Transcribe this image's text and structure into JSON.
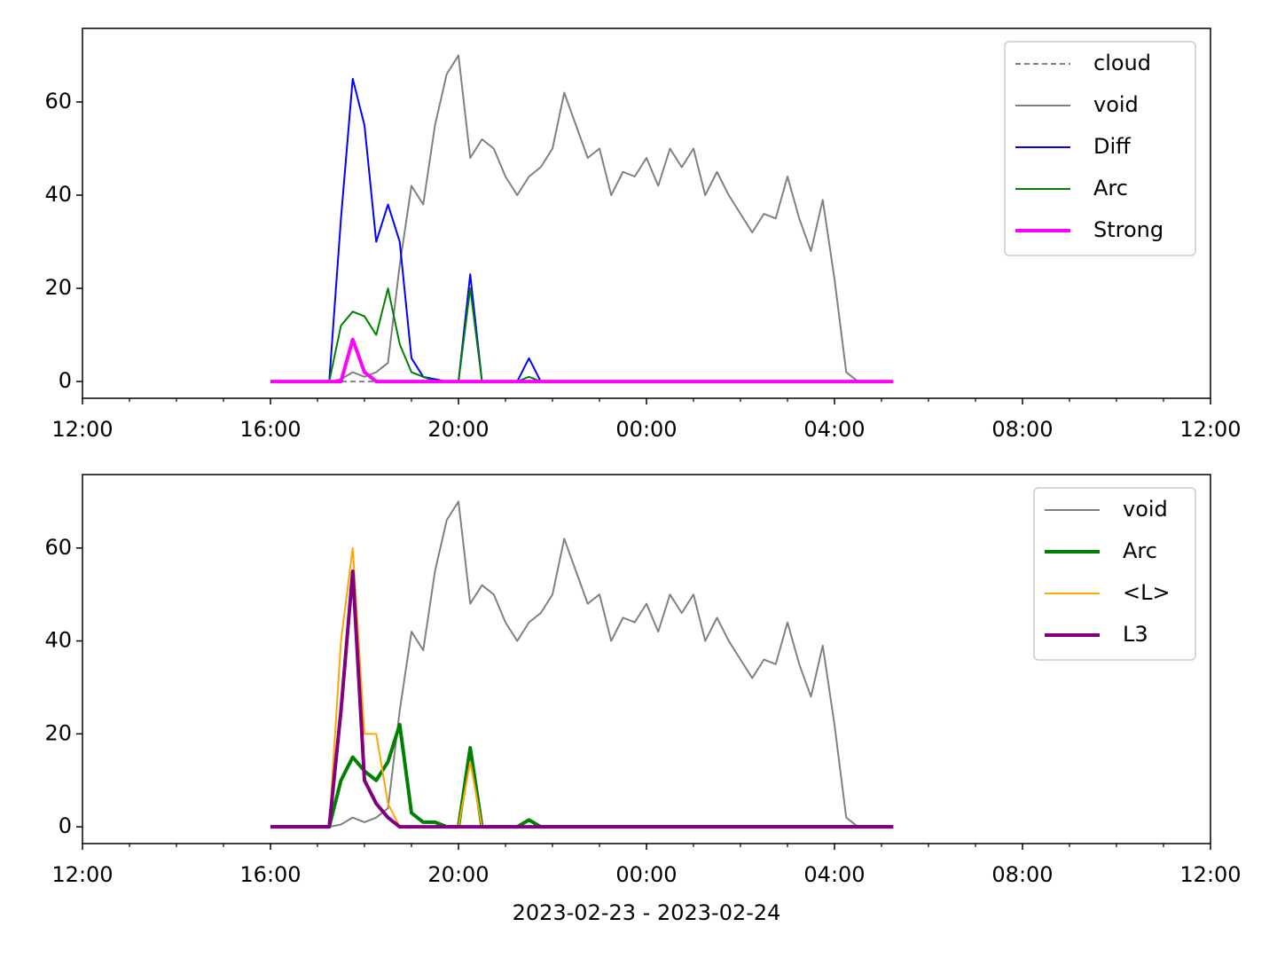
{
  "chart_data": [
    {
      "type": "line",
      "legend": "upper right",
      "xlim": [
        "2023-02-23T12:00",
        "2023-02-24T12:00"
      ],
      "xticks": [
        {
          "value": "2023-02-23T12:00",
          "label": "12:00"
        },
        {
          "value": "2023-02-23T16:00",
          "label": "16:00"
        },
        {
          "value": "2023-02-23T20:00",
          "label": "20:00"
        },
        {
          "value": "2023-02-24T00:00",
          "label": "00:00"
        },
        {
          "value": "2023-02-24T04:00",
          "label": "04:00"
        },
        {
          "value": "2023-02-24T08:00",
          "label": "08:00"
        },
        {
          "value": "2023-02-24T12:00",
          "label": "12:00"
        }
      ],
      "xminorticks": [
        "2023-02-23T13:00",
        "2023-02-23T14:00",
        "2023-02-23T15:00",
        "2023-02-23T17:00",
        "2023-02-23T18:00",
        "2023-02-23T19:00",
        "2023-02-23T21:00",
        "2023-02-23T22:00",
        "2023-02-23T23:00",
        "2023-02-24T01:00",
        "2023-02-24T02:00",
        "2023-02-24T03:00",
        "2023-02-24T05:00",
        "2023-02-24T06:00",
        "2023-02-24T07:00",
        "2023-02-24T09:00",
        "2023-02-24T10:00",
        "2023-02-24T11:00"
      ],
      "ylim": [
        -3.6,
        75.8
      ],
      "yticks": [
        0,
        20,
        40,
        60
      ],
      "x": [
        "2023-02-23T16:00",
        "2023-02-23T16:15",
        "2023-02-23T16:30",
        "2023-02-23T16:45",
        "2023-02-23T17:00",
        "2023-02-23T17:15",
        "2023-02-23T17:30",
        "2023-02-23T17:45",
        "2023-02-23T18:00",
        "2023-02-23T18:15",
        "2023-02-23T18:30",
        "2023-02-23T18:45",
        "2023-02-23T19:00",
        "2023-02-23T19:15",
        "2023-02-23T19:30",
        "2023-02-23T19:45",
        "2023-02-23T20:00",
        "2023-02-23T20:15",
        "2023-02-23T20:30",
        "2023-02-23T20:45",
        "2023-02-23T21:00",
        "2023-02-23T21:15",
        "2023-02-23T21:30",
        "2023-02-23T21:45",
        "2023-02-23T22:00",
        "2023-02-23T22:15",
        "2023-02-23T22:30",
        "2023-02-23T22:45",
        "2023-02-23T23:00",
        "2023-02-23T23:15",
        "2023-02-23T23:30",
        "2023-02-23T23:45",
        "2023-02-24T00:00",
        "2023-02-24T00:15",
        "2023-02-24T00:30",
        "2023-02-24T00:45",
        "2023-02-24T01:00",
        "2023-02-24T01:15",
        "2023-02-24T01:30",
        "2023-02-24T01:45",
        "2023-02-24T02:00",
        "2023-02-24T02:15",
        "2023-02-24T02:30",
        "2023-02-24T02:45",
        "2023-02-24T03:00",
        "2023-02-24T03:15",
        "2023-02-24T03:30",
        "2023-02-24T03:45",
        "2023-02-24T04:00",
        "2023-02-24T04:15",
        "2023-02-24T04:30",
        "2023-02-24T04:45",
        "2023-02-24T05:00",
        "2023-02-24T05:15"
      ],
      "series": [
        {
          "name": "cloud",
          "color": "#808080",
          "width": 1.5,
          "dash": true,
          "values": [
            0,
            0,
            0,
            0,
            0,
            0,
            0,
            0,
            0,
            0,
            0,
            0,
            0,
            0,
            0,
            0,
            0,
            0,
            0,
            0,
            0,
            0,
            0,
            0,
            0,
            0,
            0,
            0,
            0,
            0,
            0,
            0,
            0,
            0,
            0,
            0,
            0,
            0,
            0,
            0,
            0,
            0,
            0,
            0,
            0,
            0,
            0,
            0,
            0,
            0,
            0,
            0,
            0,
            0
          ]
        },
        {
          "name": "void",
          "color": "#808080",
          "width": 1.5,
          "values": [
            0,
            0,
            0,
            0,
            0,
            0,
            0.5,
            2,
            1,
            2,
            4,
            25,
            42,
            38,
            55,
            66,
            70,
            48,
            52,
            50,
            44,
            40,
            44,
            46,
            50,
            62,
            55,
            48,
            50,
            40,
            45,
            44,
            48,
            42,
            50,
            46,
            50,
            40,
            45,
            40,
            36,
            32,
            36,
            35,
            44,
            35,
            28,
            39,
            22,
            2,
            0,
            0,
            0,
            0
          ]
        },
        {
          "name": "Diff",
          "color": "#0000ff",
          "width": 1.5,
          "values": [
            0,
            0,
            0,
            0,
            0,
            0,
            35,
            65,
            55,
            30,
            38,
            30,
            5,
            1,
            0.5,
            0,
            0,
            23,
            0,
            0,
            0,
            0,
            5,
            0,
            0,
            0,
            0,
            0,
            0,
            0,
            0,
            0,
            0,
            0,
            0,
            0,
            0,
            0,
            0,
            0,
            0,
            0,
            0,
            0,
            0,
            0,
            0,
            0,
            0,
            0,
            0,
            0,
            0,
            0
          ]
        },
        {
          "name": "Arc",
          "color": "#008000",
          "width": 1.5,
          "values": [
            0,
            0,
            0,
            0,
            0,
            0,
            12,
            15,
            14,
            10,
            20,
            8,
            2,
            1,
            0,
            0,
            0,
            20,
            0,
            0,
            0,
            0,
            1,
            0,
            0,
            0,
            0,
            0,
            0,
            0,
            0,
            0,
            0,
            0,
            0,
            0,
            0,
            0,
            0,
            0,
            0,
            0,
            0,
            0,
            0,
            0,
            0,
            0,
            0,
            0,
            0,
            0,
            0,
            0
          ]
        },
        {
          "name": "Strong",
          "color": "#ff00ff",
          "width": 3,
          "values": [
            0,
            0,
            0,
            0,
            0,
            0,
            0,
            9,
            2,
            0,
            0,
            0,
            0,
            0,
            0,
            0,
            0,
            0,
            0,
            0,
            0,
            0,
            0,
            0,
            0,
            0,
            0,
            0,
            0,
            0,
            0,
            0,
            0,
            0,
            0,
            0,
            0,
            0,
            0,
            0,
            0,
            0,
            0,
            0,
            0,
            0,
            0,
            0,
            0,
            0,
            0,
            0,
            0,
            0
          ]
        }
      ]
    },
    {
      "type": "line",
      "legend": "upper right",
      "xlabel": "2023-02-23 - 2023-02-24",
      "xlim": [
        "2023-02-23T12:00",
        "2023-02-24T12:00"
      ],
      "xticks": [
        {
          "value": "2023-02-23T12:00",
          "label": "12:00"
        },
        {
          "value": "2023-02-23T16:00",
          "label": "16:00"
        },
        {
          "value": "2023-02-23T20:00",
          "label": "20:00"
        },
        {
          "value": "2023-02-24T00:00",
          "label": "00:00"
        },
        {
          "value": "2023-02-24T04:00",
          "label": "04:00"
        },
        {
          "value": "2023-02-24T08:00",
          "label": "08:00"
        },
        {
          "value": "2023-02-24T12:00",
          "label": "12:00"
        }
      ],
      "xminorticks": [
        "2023-02-23T13:00",
        "2023-02-23T14:00",
        "2023-02-23T15:00",
        "2023-02-23T17:00",
        "2023-02-23T18:00",
        "2023-02-23T19:00",
        "2023-02-23T21:00",
        "2023-02-23T22:00",
        "2023-02-23T23:00",
        "2023-02-24T01:00",
        "2023-02-24T02:00",
        "2023-02-24T03:00",
        "2023-02-24T05:00",
        "2023-02-24T06:00",
        "2023-02-24T07:00",
        "2023-02-24T09:00",
        "2023-02-24T10:00",
        "2023-02-24T11:00"
      ],
      "ylim": [
        -3.6,
        75.8
      ],
      "yticks": [
        0,
        20,
        40,
        60
      ],
      "x": [
        "2023-02-23T16:00",
        "2023-02-23T16:15",
        "2023-02-23T16:30",
        "2023-02-23T16:45",
        "2023-02-23T17:00",
        "2023-02-23T17:15",
        "2023-02-23T17:30",
        "2023-02-23T17:45",
        "2023-02-23T18:00",
        "2023-02-23T18:15",
        "2023-02-23T18:30",
        "2023-02-23T18:45",
        "2023-02-23T19:00",
        "2023-02-23T19:15",
        "2023-02-23T19:30",
        "2023-02-23T19:45",
        "2023-02-23T20:00",
        "2023-02-23T20:15",
        "2023-02-23T20:30",
        "2023-02-23T20:45",
        "2023-02-23T21:00",
        "2023-02-23T21:15",
        "2023-02-23T21:30",
        "2023-02-23T21:45",
        "2023-02-23T22:00",
        "2023-02-23T22:15",
        "2023-02-23T22:30",
        "2023-02-23T22:45",
        "2023-02-23T23:00",
        "2023-02-23T23:15",
        "2023-02-23T23:30",
        "2023-02-23T23:45",
        "2023-02-24T00:00",
        "2023-02-24T00:15",
        "2023-02-24T00:30",
        "2023-02-24T00:45",
        "2023-02-24T01:00",
        "2023-02-24T01:15",
        "2023-02-24T01:30",
        "2023-02-24T01:45",
        "2023-02-24T02:00",
        "2023-02-24T02:15",
        "2023-02-24T02:30",
        "2023-02-24T02:45",
        "2023-02-24T03:00",
        "2023-02-24T03:15",
        "2023-02-24T03:30",
        "2023-02-24T03:45",
        "2023-02-24T04:00",
        "2023-02-24T04:15",
        "2023-02-24T04:30",
        "2023-02-24T04:45",
        "2023-02-24T05:00",
        "2023-02-24T05:15"
      ],
      "series": [
        {
          "name": "void",
          "color": "#808080",
          "width": 1.5,
          "values": [
            0,
            0,
            0,
            0,
            0,
            0,
            0.5,
            2,
            1,
            2,
            4,
            25,
            42,
            38,
            55,
            66,
            70,
            48,
            52,
            50,
            44,
            40,
            44,
            46,
            50,
            62,
            55,
            48,
            50,
            40,
            45,
            44,
            48,
            42,
            50,
            46,
            50,
            40,
            45,
            40,
            36,
            32,
            36,
            35,
            44,
            35,
            28,
            39,
            22,
            2,
            0,
            0,
            0,
            0
          ]
        },
        {
          "name": "Arc",
          "color": "#008000",
          "width": 3,
          "values": [
            0,
            0,
            0,
            0,
            0,
            0,
            10,
            15,
            12,
            10,
            14,
            22,
            3,
            1,
            1,
            0,
            0,
            17,
            0,
            0,
            0,
            0,
            1.5,
            0,
            0,
            0,
            0,
            0,
            0,
            0,
            0,
            0,
            0,
            0,
            0,
            0,
            0,
            0,
            0,
            0,
            0,
            0,
            0,
            0,
            0,
            0,
            0,
            0,
            0,
            0,
            0,
            0,
            0,
            0
          ]
        },
        {
          "name": "<L>",
          "color": "#ffa500",
          "width": 1.5,
          "values": [
            0,
            0,
            0,
            0,
            0,
            0,
            40,
            60,
            20,
            20,
            5,
            0,
            0,
            0,
            0,
            0,
            0,
            14,
            0,
            0,
            0,
            0,
            0,
            0,
            0,
            0,
            0,
            0,
            0,
            0,
            0,
            0,
            0,
            0,
            0,
            0,
            0,
            0,
            0,
            0,
            0,
            0,
            0,
            0,
            0,
            0,
            0,
            0,
            0,
            0,
            0,
            0,
            0,
            0
          ]
        },
        {
          "name": "L3",
          "color": "#800080",
          "width": 3,
          "values": [
            0,
            0,
            0,
            0,
            0,
            0,
            25,
            55,
            10,
            5,
            2,
            0,
            0,
            0,
            0,
            0,
            0,
            0,
            0,
            0,
            0,
            0,
            0,
            0,
            0,
            0,
            0,
            0,
            0,
            0,
            0,
            0,
            0,
            0,
            0,
            0,
            0,
            0,
            0,
            0,
            0,
            0,
            0,
            0,
            0,
            0,
            0,
            0,
            0,
            0,
            0,
            0,
            0,
            0
          ]
        }
      ]
    }
  ]
}
